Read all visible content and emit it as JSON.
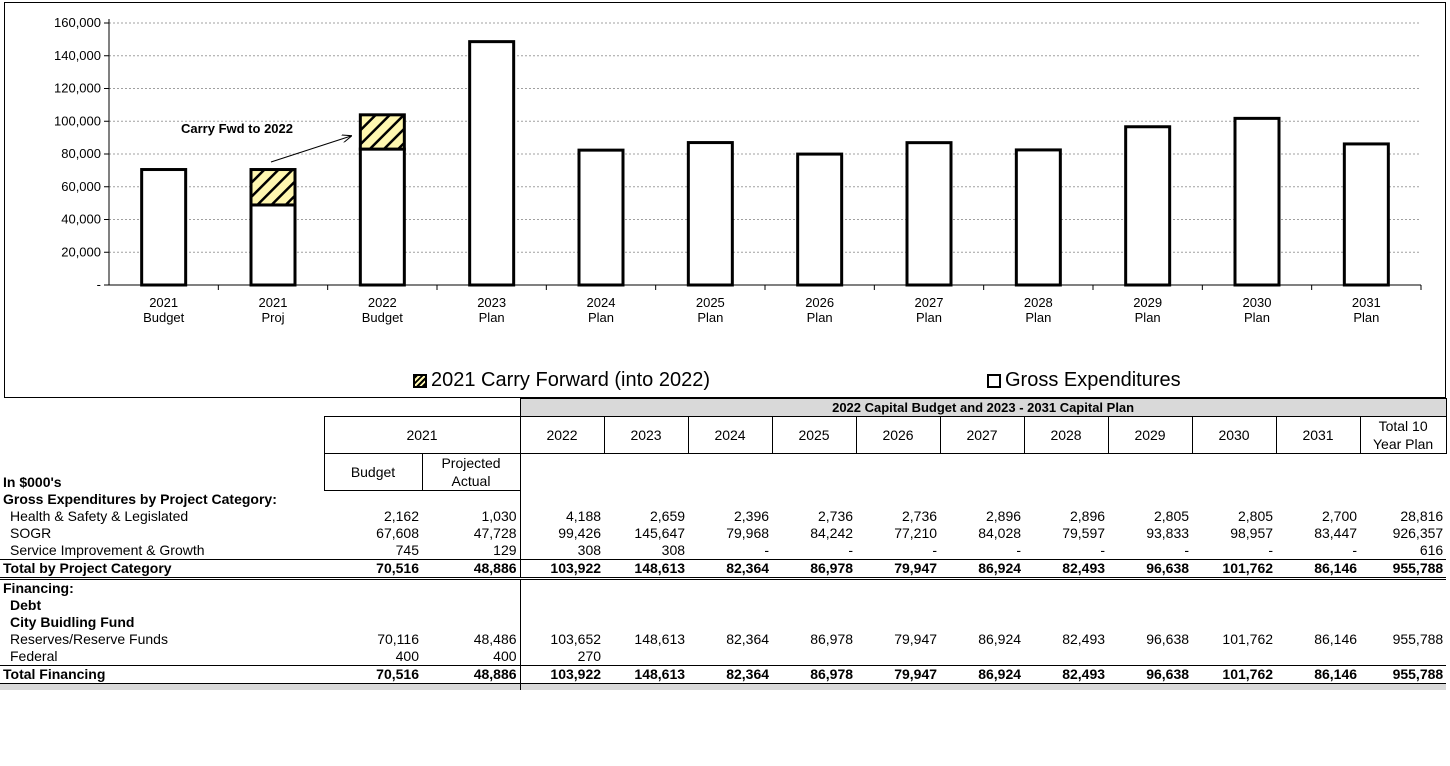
{
  "chart_data": {
    "type": "bar",
    "categories": [
      [
        "2021",
        "Budget"
      ],
      [
        "2021",
        "Proj"
      ],
      [
        "2022",
        "Budget"
      ],
      [
        "2023",
        "Plan"
      ],
      [
        "2024",
        "Plan"
      ],
      [
        "2025",
        "Plan"
      ],
      [
        "2026",
        "Plan"
      ],
      [
        "2027",
        "Plan"
      ],
      [
        "2028",
        "Plan"
      ],
      [
        "2029",
        "Plan"
      ],
      [
        "2030",
        "Plan"
      ],
      [
        "2031",
        "Plan"
      ]
    ],
    "series": [
      {
        "name": "Gross Expenditures",
        "values": [
          70516,
          48886,
          83000,
          148613,
          82364,
          86978,
          79947,
          86924,
          82493,
          96638,
          101762,
          86146
        ]
      },
      {
        "name": "2021 Carry Forward (into 2022)",
        "values": [
          0,
          21630,
          20922,
          0,
          0,
          0,
          0,
          0,
          0,
          0,
          0,
          0
        ]
      }
    ],
    "stacked": true,
    "ylim": [
      0,
      160000
    ],
    "yticks": [
      0,
      20000,
      40000,
      60000,
      80000,
      100000,
      120000,
      140000,
      160000
    ],
    "ytick_labels": [
      "-",
      "20,000",
      "40,000",
      "60,000",
      "80,000",
      "100,000",
      "120,000",
      "140,000",
      "160,000"
    ],
    "grid": true,
    "legend": "bottom",
    "annotation": "Carry Fwd to 2022",
    "colors": {
      "gross": "#ffffff",
      "carry_fill": "#fff7b0",
      "carry_hatch": "#000000",
      "outline": "#000000",
      "grid": "#a0a0a0"
    }
  },
  "legend": {
    "carry": "2021 Carry Forward (into 2022)",
    "gross": "Gross Expenditures"
  },
  "table": {
    "plan_title": "2022  Capital Budget and 2023 - 2031 Capital Plan",
    "group_2021": "2021",
    "years": [
      "2022",
      "2023",
      "2024",
      "2025",
      "2026",
      "2027",
      "2028",
      "2029",
      "2030",
      "2031"
    ],
    "total_label": "Total 10 Year Plan",
    "units_label": "In $000's",
    "budget_label": "Budget",
    "projected_label": "Projected Actual",
    "rows": [
      {
        "label": "Gross Expenditures by Project Category:",
        "style": "section",
        "values": []
      },
      {
        "label": "Health & Safety & Legislated",
        "style": "item",
        "values": [
          "2,162",
          "1,030",
          "4,188",
          "2,659",
          "2,396",
          "2,736",
          "2,736",
          "2,896",
          "2,896",
          "2,805",
          "2,805",
          "2,700",
          "28,816"
        ]
      },
      {
        "label": "SOGR",
        "style": "item",
        "values": [
          "67,608",
          "47,728",
          "99,426",
          "145,647",
          "79,968",
          "84,242",
          "77,210",
          "84,028",
          "79,597",
          "93,833",
          "98,957",
          "83,447",
          "926,357"
        ]
      },
      {
        "label": "Service Improvement & Growth",
        "style": "item",
        "values": [
          "745",
          "129",
          "308",
          "308",
          "-",
          "-",
          "-",
          "-",
          "-",
          "-",
          "-",
          "-",
          "616"
        ]
      },
      {
        "label": "Total by Project Category",
        "style": "total",
        "values": [
          "70,516",
          "48,886",
          "103,922",
          "148,613",
          "82,364",
          "86,978",
          "79,947",
          "86,924",
          "82,493",
          "96,638",
          "101,762",
          "86,146",
          "955,788"
        ]
      },
      {
        "label": "Financing:",
        "style": "section2",
        "values": []
      },
      {
        "label": "Debt",
        "style": "subsection",
        "values": []
      },
      {
        "label": "City Buidling Fund",
        "style": "subsection",
        "values": []
      },
      {
        "label": "Reserves/Reserve Funds",
        "style": "item",
        "values": [
          "70,116",
          "48,486",
          "103,652",
          "148,613",
          "82,364",
          "86,978",
          "79,947",
          "86,924",
          "82,493",
          "96,638",
          "101,762",
          "86,146",
          "955,788"
        ]
      },
      {
        "label": "Federal",
        "style": "item",
        "values": [
          "400",
          "400",
          "270",
          "",
          "",
          "",
          "",
          "",
          "",
          "",
          "",
          "",
          ""
        ]
      },
      {
        "label": "Total Financing",
        "style": "total2",
        "values": [
          "70,516",
          "48,886",
          "103,922",
          "148,613",
          "82,364",
          "86,978",
          "79,947",
          "86,924",
          "82,493",
          "96,638",
          "101,762",
          "86,146",
          "955,788"
        ]
      }
    ]
  }
}
